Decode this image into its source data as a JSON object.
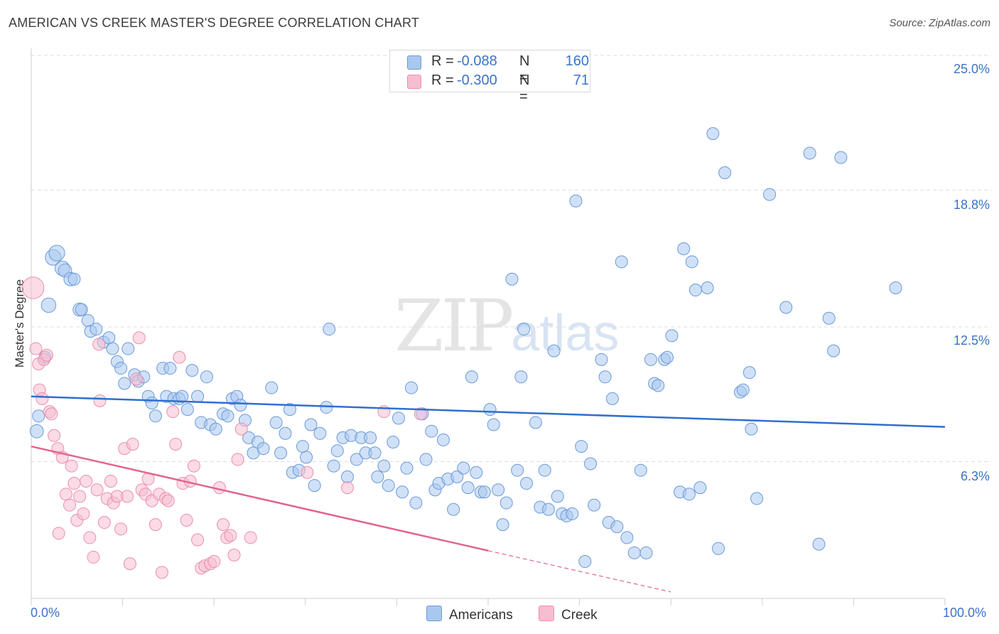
{
  "title": "AMERICAN VS CREEK MASTER'S DEGREE CORRELATION CHART",
  "source": "Source: ZipAtlas.com",
  "watermark": {
    "zip": "ZIP",
    "atlas": "atlas"
  },
  "colors": {
    "americans_fill": "#a9c8f0",
    "americans_stroke": "#6a9ad8",
    "americans_line": "#2f6fcf",
    "creek_fill": "#f7bdd0",
    "creek_stroke": "#ea8fad",
    "creek_line": "#e2658f",
    "grid": "#dddddd",
    "axis_text": "#3b73c9"
  },
  "legend": {
    "row1": {
      "r_label": "R =",
      "r_value": "-0.088",
      "n_label": "N =",
      "n_value": "160"
    },
    "row2": {
      "r_label": "R =",
      "r_value": "-0.300",
      "n_label": "N =",
      "n_value": "71"
    }
  },
  "bottom_legend": {
    "americans": "Americans",
    "creek": "Creek"
  },
  "chart_data": {
    "type": "scatter",
    "title": "AMERICAN VS CREEK MASTER'S DEGREE CORRELATION CHART",
    "xlabel": "",
    "ylabel": "Master's Degree",
    "xlim": [
      0,
      100
    ],
    "ylim": [
      0,
      25
    ],
    "x_tick_labels": [
      "0.0%",
      "100.0%"
    ],
    "y_tick_labels": [
      "6.3%",
      "12.5%",
      "18.8%",
      "25.0%"
    ],
    "y_ticks": [
      6.3,
      12.5,
      18.8,
      25.0
    ],
    "grid": true,
    "legend_position": "top-center",
    "series": [
      {
        "name": "Americans",
        "r": -0.088,
        "n": 160,
        "trend": {
          "x": [
            0,
            100
          ],
          "y": [
            9.3,
            7.9
          ]
        },
        "points": [
          [
            0.6,
            7.7,
            11
          ],
          [
            0.8,
            8.4,
            10
          ],
          [
            1.5,
            11.1,
            10
          ],
          [
            1.9,
            13.5,
            12
          ],
          [
            2.4,
            15.7,
            13
          ],
          [
            2.8,
            15.9,
            13
          ],
          [
            3.4,
            15.2,
            12
          ],
          [
            3.7,
            15.1,
            11
          ],
          [
            4.3,
            14.7,
            11
          ],
          [
            4.7,
            14.7,
            10
          ],
          [
            5.3,
            13.3,
            11
          ],
          [
            5.5,
            13.3,
            10
          ],
          [
            6.2,
            12.8,
            10
          ],
          [
            6.5,
            12.3,
            10
          ],
          [
            7.1,
            12.4,
            10
          ],
          [
            7.9,
            11.8,
            10
          ],
          [
            8.5,
            12.0,
            10
          ],
          [
            8.9,
            11.5,
            10
          ],
          [
            9.4,
            10.9,
            10
          ],
          [
            9.8,
            10.6,
            10
          ],
          [
            10.2,
            9.9,
            10
          ],
          [
            10.6,
            11.5,
            10
          ],
          [
            11.3,
            10.3,
            10
          ],
          [
            11.7,
            10.0,
            10
          ],
          [
            12.3,
            10.2,
            10
          ],
          [
            12.8,
            9.3,
            10
          ],
          [
            13.2,
            9.0,
            10
          ],
          [
            13.6,
            8.4,
            10
          ],
          [
            14.4,
            10.6,
            10
          ],
          [
            14.8,
            9.3,
            10
          ],
          [
            15.2,
            10.6,
            10
          ],
          [
            15.6,
            9.2,
            10
          ],
          [
            16.2,
            9.2,
            10
          ],
          [
            16.5,
            9.3,
            10
          ],
          [
            17.1,
            8.7,
            10
          ],
          [
            17.6,
            10.5,
            10
          ],
          [
            18.2,
            9.3,
            10
          ],
          [
            18.6,
            8.1,
            10
          ],
          [
            19.2,
            10.2,
            10
          ],
          [
            19.6,
            8.0,
            10
          ],
          [
            20.2,
            7.8,
            10
          ],
          [
            21.0,
            8.5,
            10
          ],
          [
            21.5,
            8.4,
            10
          ],
          [
            22.0,
            9.2,
            10
          ],
          [
            22.5,
            9.3,
            10
          ],
          [
            22.9,
            8.9,
            10
          ],
          [
            23.4,
            8.2,
            10
          ],
          [
            23.8,
            7.4,
            10
          ],
          [
            24.3,
            6.7,
            10
          ],
          [
            24.8,
            7.2,
            10
          ],
          [
            25.4,
            6.9,
            10
          ],
          [
            26.3,
            9.7,
            10
          ],
          [
            26.8,
            8.1,
            10
          ],
          [
            27.3,
            6.7,
            10
          ],
          [
            27.8,
            7.6,
            10
          ],
          [
            28.3,
            8.7,
            10
          ],
          [
            28.6,
            5.8,
            10
          ],
          [
            29.3,
            5.9,
            10
          ],
          [
            29.7,
            7.0,
            10
          ],
          [
            30.1,
            6.5,
            10
          ],
          [
            30.6,
            8.0,
            10
          ],
          [
            31.0,
            5.2,
            10
          ],
          [
            31.6,
            7.6,
            10
          ],
          [
            32.3,
            8.8,
            10
          ],
          [
            32.6,
            12.4,
            10
          ],
          [
            33.1,
            6.1,
            10
          ],
          [
            33.5,
            6.8,
            10
          ],
          [
            34.1,
            7.4,
            10
          ],
          [
            34.6,
            5.6,
            10
          ],
          [
            35.0,
            7.5,
            10
          ],
          [
            35.6,
            6.4,
            10
          ],
          [
            36.1,
            7.4,
            10
          ],
          [
            36.6,
            6.7,
            10
          ],
          [
            37.1,
            7.4,
            10
          ],
          [
            37.6,
            6.7,
            10
          ],
          [
            37.9,
            5.6,
            10
          ],
          [
            38.6,
            6.1,
            10
          ],
          [
            39.1,
            5.2,
            10
          ],
          [
            39.6,
            7.2,
            10
          ],
          [
            40.2,
            8.3,
            10
          ],
          [
            40.6,
            4.9,
            10
          ],
          [
            41.1,
            6.0,
            10
          ],
          [
            41.6,
            9.7,
            10
          ],
          [
            42.1,
            4.4,
            10
          ],
          [
            42.8,
            8.5,
            10
          ],
          [
            43.2,
            6.4,
            10
          ],
          [
            43.8,
            7.7,
            10
          ],
          [
            44.2,
            5.0,
            10
          ],
          [
            44.6,
            5.3,
            10
          ],
          [
            45.1,
            7.3,
            10
          ],
          [
            45.6,
            5.5,
            10
          ],
          [
            46.2,
            4.1,
            10
          ],
          [
            46.6,
            5.6,
            10
          ],
          [
            47.3,
            6.0,
            10
          ],
          [
            47.8,
            5.1,
            10
          ],
          [
            48.2,
            10.2,
            10
          ],
          [
            48.7,
            5.8,
            10
          ],
          [
            49.2,
            4.9,
            10
          ],
          [
            49.6,
            4.9,
            10
          ],
          [
            50.2,
            8.7,
            10
          ],
          [
            50.6,
            8.0,
            10
          ],
          [
            51.1,
            5.0,
            10
          ],
          [
            51.6,
            3.4,
            10
          ],
          [
            52.0,
            4.4,
            10
          ],
          [
            52.6,
            14.7,
            10
          ],
          [
            53.2,
            5.9,
            10
          ],
          [
            53.6,
            10.2,
            10
          ],
          [
            53.9,
            12.4,
            10
          ],
          [
            54.2,
            5.3,
            10
          ],
          [
            55.2,
            8.1,
            10
          ],
          [
            55.7,
            4.2,
            10
          ],
          [
            56.2,
            5.9,
            10
          ],
          [
            56.6,
            4.1,
            10
          ],
          [
            57.2,
            11.4,
            10
          ],
          [
            57.6,
            4.7,
            10
          ],
          [
            58.1,
            3.9,
            10
          ],
          [
            58.6,
            3.8,
            10
          ],
          [
            59.2,
            3.9,
            10
          ],
          [
            59.6,
            18.3,
            10
          ],
          [
            60.2,
            7.0,
            10
          ],
          [
            60.6,
            1.7,
            10
          ],
          [
            61.2,
            6.2,
            10
          ],
          [
            61.6,
            4.3,
            10
          ],
          [
            62.4,
            11.0,
            10
          ],
          [
            62.8,
            10.2,
            10
          ],
          [
            63.2,
            3.5,
            10
          ],
          [
            63.6,
            9.2,
            10
          ],
          [
            64.1,
            3.3,
            10
          ],
          [
            64.6,
            15.5,
            10
          ],
          [
            65.2,
            2.8,
            10
          ],
          [
            66.0,
            2.1,
            10
          ],
          [
            66.7,
            5.9,
            10
          ],
          [
            67.3,
            2.1,
            10
          ],
          [
            67.8,
            11.0,
            10
          ],
          [
            68.2,
            9.9,
            10
          ],
          [
            68.6,
            9.8,
            10
          ],
          [
            69.3,
            11.0,
            10
          ],
          [
            69.6,
            11.1,
            10
          ],
          [
            70.1,
            12.1,
            10
          ],
          [
            71.0,
            4.9,
            10
          ],
          [
            71.4,
            16.1,
            10
          ],
          [
            72.0,
            4.8,
            10
          ],
          [
            72.3,
            15.5,
            10
          ],
          [
            72.7,
            14.2,
            10
          ],
          [
            73.2,
            5.1,
            10
          ],
          [
            74.0,
            14.3,
            10
          ],
          [
            74.6,
            21.4,
            10
          ],
          [
            75.2,
            2.3,
            10
          ],
          [
            75.9,
            19.6,
            10
          ],
          [
            77.6,
            9.5,
            10
          ],
          [
            77.9,
            9.6,
            10
          ],
          [
            78.6,
            10.4,
            10
          ],
          [
            78.8,
            7.8,
            10
          ],
          [
            79.4,
            4.6,
            10
          ],
          [
            80.8,
            18.6,
            10
          ],
          [
            82.6,
            13.4,
            10
          ],
          [
            85.2,
            20.5,
            10
          ],
          [
            86.2,
            2.5,
            10
          ],
          [
            87.3,
            12.9,
            10
          ],
          [
            87.8,
            11.4,
            10
          ],
          [
            88.6,
            20.3,
            10
          ],
          [
            94.6,
            14.3,
            10
          ]
        ]
      },
      {
        "name": "Creek",
        "r": -0.3,
        "n": 71,
        "trend": {
          "x": [
            0,
            50
          ],
          "y": [
            7.0,
            2.2
          ]
        },
        "trend_dashed": {
          "x": [
            50,
            70
          ],
          "y": [
            2.2,
            0.3
          ]
        },
        "points": [
          [
            0.2,
            14.3,
            18
          ],
          [
            0.5,
            11.5,
            10
          ],
          [
            0.8,
            10.8,
            10
          ],
          [
            0.9,
            9.6,
            10
          ],
          [
            1.2,
            9.2,
            10
          ],
          [
            1.4,
            11.0,
            10
          ],
          [
            1.7,
            11.2,
            10
          ],
          [
            2.0,
            8.6,
            10
          ],
          [
            2.2,
            8.5,
            10
          ],
          [
            2.5,
            7.5,
            10
          ],
          [
            2.9,
            6.9,
            10
          ],
          [
            3.4,
            6.5,
            10
          ],
          [
            3.8,
            4.8,
            10
          ],
          [
            4.2,
            4.3,
            10
          ],
          [
            4.4,
            6.1,
            10
          ],
          [
            4.7,
            5.3,
            10
          ],
          [
            5.0,
            3.6,
            10
          ],
          [
            5.3,
            4.7,
            10
          ],
          [
            5.7,
            3.9,
            10
          ],
          [
            6.0,
            5.4,
            10
          ],
          [
            6.4,
            2.8,
            10
          ],
          [
            6.8,
            1.9,
            10
          ],
          [
            7.2,
            5.0,
            10
          ],
          [
            7.5,
            9.1,
            10
          ],
          [
            8.0,
            3.5,
            10
          ],
          [
            8.3,
            4.6,
            10
          ],
          [
            8.7,
            5.4,
            10
          ],
          [
            9.0,
            4.4,
            10
          ],
          [
            9.4,
            4.7,
            10
          ],
          [
            9.8,
            3.2,
            10
          ],
          [
            10.2,
            6.9,
            10
          ],
          [
            10.5,
            4.7,
            10
          ],
          [
            10.8,
            1.6,
            10
          ],
          [
            11.1,
            7.1,
            10
          ],
          [
            11.5,
            10.1,
            10
          ],
          [
            11.8,
            12.0,
            10
          ],
          [
            12.1,
            5.0,
            10
          ],
          [
            12.5,
            4.8,
            10
          ],
          [
            12.8,
            5.5,
            10
          ],
          [
            13.2,
            4.5,
            10
          ],
          [
            13.6,
            3.4,
            10
          ],
          [
            14.0,
            4.8,
            10
          ],
          [
            14.3,
            1.2,
            10
          ],
          [
            14.7,
            4.6,
            10
          ],
          [
            15.0,
            4.5,
            10
          ],
          [
            15.5,
            8.6,
            10
          ],
          [
            15.8,
            7.1,
            10
          ],
          [
            16.2,
            11.1,
            10
          ],
          [
            16.6,
            5.3,
            10
          ],
          [
            17.0,
            3.6,
            10
          ],
          [
            17.4,
            5.4,
            10
          ],
          [
            17.8,
            6.1,
            10
          ],
          [
            18.2,
            2.7,
            10
          ],
          [
            18.6,
            1.4,
            10
          ],
          [
            19.0,
            1.5,
            10
          ],
          [
            19.6,
            1.6,
            10
          ],
          [
            20.0,
            1.7,
            10
          ],
          [
            20.6,
            5.1,
            10
          ],
          [
            21.0,
            3.4,
            10
          ],
          [
            21.4,
            2.8,
            10
          ],
          [
            21.8,
            2.9,
            10
          ],
          [
            22.2,
            2.0,
            10
          ],
          [
            22.6,
            6.4,
            10
          ],
          [
            23.0,
            7.8,
            10
          ],
          [
            24.0,
            2.8,
            10
          ],
          [
            30.2,
            5.8,
            10
          ],
          [
            34.6,
            5.1,
            10
          ],
          [
            38.6,
            8.6,
            10
          ],
          [
            42.6,
            8.5,
            10
          ],
          [
            7.4,
            11.7,
            10
          ],
          [
            3.0,
            3.0,
            10
          ]
        ]
      }
    ]
  }
}
